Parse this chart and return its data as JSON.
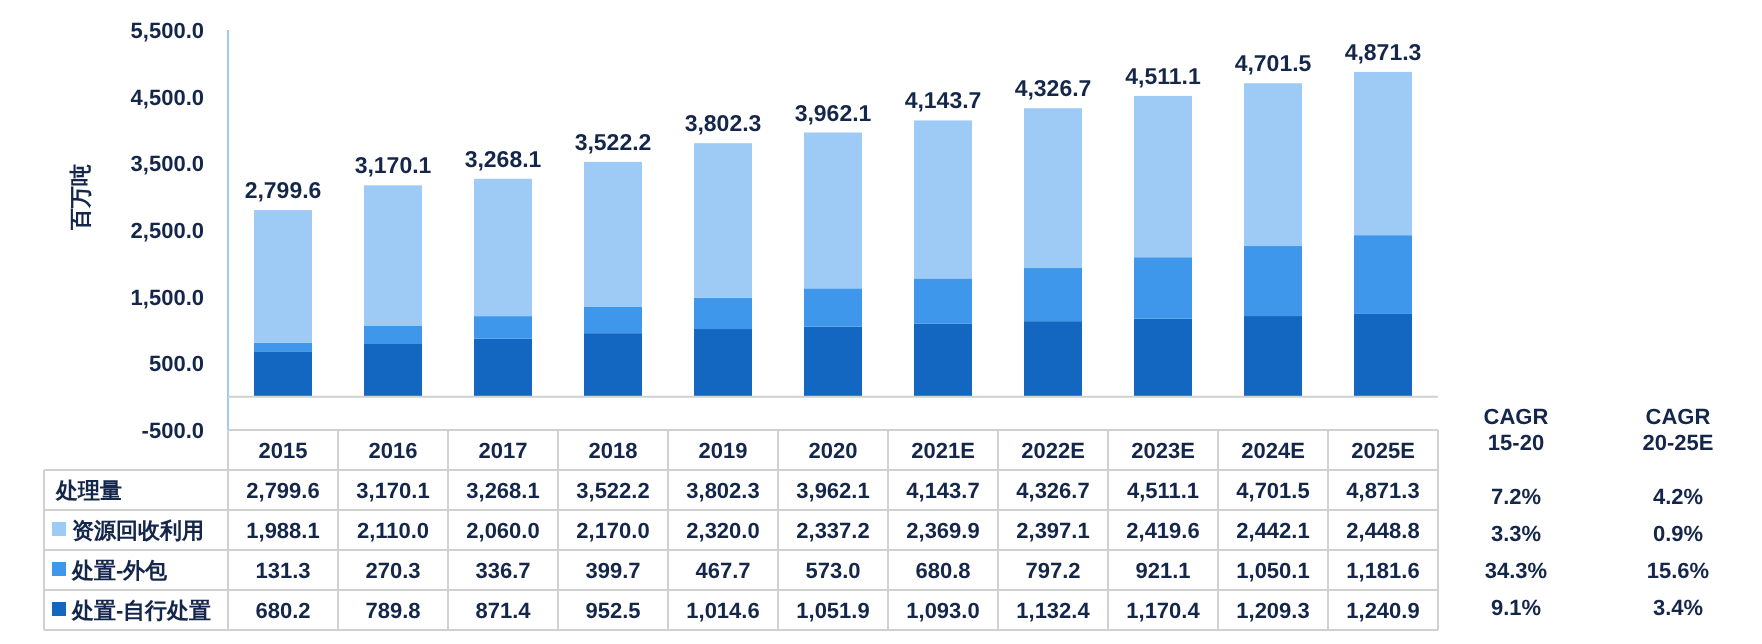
{
  "chart_data": {
    "type": "bar",
    "stacked": true,
    "ylabel": "百万吨",
    "categories": [
      "2015",
      "2016",
      "2017",
      "2018",
      "2019",
      "2020",
      "2021E",
      "2022E",
      "2023E",
      "2024E",
      "2025E"
    ],
    "series": [
      {
        "name": "处置-自行处置",
        "color": "#1467c0",
        "values": [
          680.2,
          789.8,
          871.4,
          952.5,
          1014.6,
          1051.9,
          1093.0,
          1132.4,
          1170.4,
          1209.3,
          1240.9
        ],
        "value_labels": [
          "680.2",
          "789.8",
          "871.4",
          "952.5",
          "1,014.6",
          "1,051.9",
          "1,093.0",
          "1,132.4",
          "1,170.4",
          "1,209.3",
          "1,240.9"
        ]
      },
      {
        "name": "处置-外包",
        "color": "#3f97ec",
        "values": [
          131.3,
          270.3,
          336.7,
          399.7,
          467.7,
          573.0,
          680.8,
          797.2,
          921.1,
          1050.1,
          1181.6
        ],
        "value_labels": [
          "131.3",
          "270.3",
          "336.7",
          "399.7",
          "467.7",
          "573.0",
          "680.8",
          "797.2",
          "921.1",
          "1,050.1",
          "1,181.6"
        ]
      },
      {
        "name": "资源回收利用",
        "color": "#9ecbf5",
        "values": [
          1988.1,
          2110.0,
          2060.0,
          2170.0,
          2320.0,
          2337.2,
          2369.9,
          2397.1,
          2419.6,
          2442.1,
          2448.8
        ],
        "value_labels": [
          "1,988.1",
          "2,110.0",
          "2,060.0",
          "2,170.0",
          "2,320.0",
          "2,337.2",
          "2,369.9",
          "2,397.1",
          "2,419.6",
          "2,442.1",
          "2,448.8"
        ]
      }
    ],
    "totals": [
      "2,799.6",
      "3,170.1",
      "3,268.1",
      "3,522.2",
      "3,802.3",
      "3,962.1",
      "4,143.7",
      "4,326.7",
      "4,511.1",
      "4,701.5",
      "4,871.3"
    ],
    "annotations": [
      "处理量",
      "CAGR 15-20",
      "CAGR 20-25E",
      "7.2%",
      "4.2%",
      "3.3%",
      "0.9%",
      "34.3%",
      "15.6%",
      "9.1%",
      "3.4%"
    ],
    "ylim": [
      -500,
      5500
    ],
    "yticks": [
      {
        "value": -500,
        "label": "-500.0"
      },
      {
        "value": 500,
        "label": "500.0"
      },
      {
        "value": 1500,
        "label": "1,500.0"
      },
      {
        "value": 2500,
        "label": "2,500.0"
      },
      {
        "value": 3500,
        "label": "3,500.0"
      },
      {
        "value": 4500,
        "label": "4,500.0"
      },
      {
        "value": 5500,
        "label": "5,500.0"
      }
    ],
    "grid": false,
    "legend": "bottom"
  }
}
